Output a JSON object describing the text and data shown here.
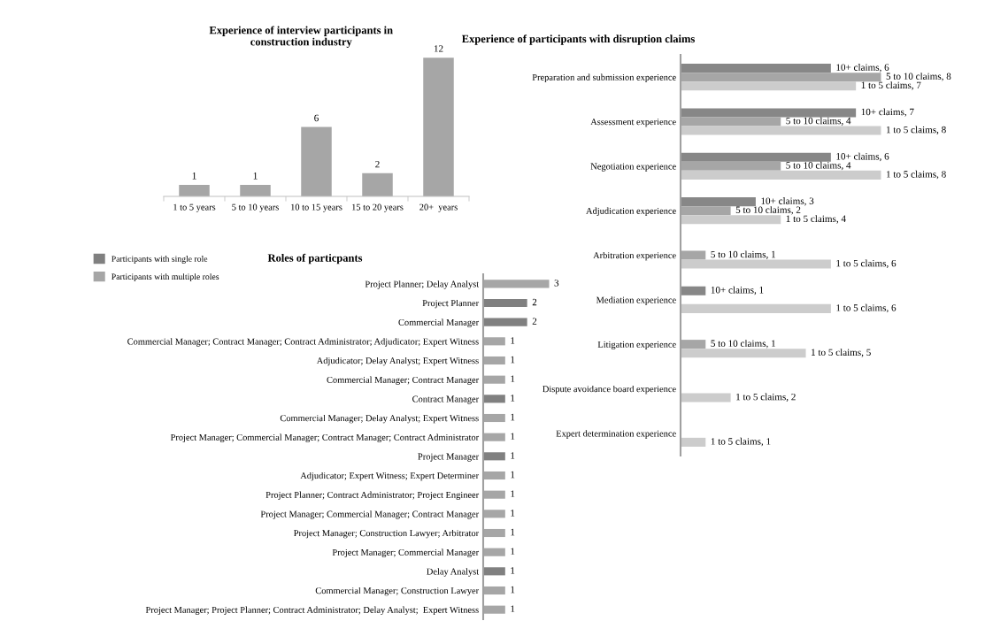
{
  "chart_data": [
    {
      "type": "bar",
      "title": "Experience of interview participants in\nconstruction industry",
      "categories": [
        "1 to 5 years",
        "5 to 10 years",
        "10 to 15 years",
        "15 to 20 years",
        "20+  years"
      ],
      "values": [
        1,
        1,
        6,
        2,
        12
      ],
      "color": "#a6a6a6",
      "data_labels": true,
      "tick_labels": "x",
      "grid": false,
      "legend": false
    },
    {
      "type": "bar",
      "orientation": "horizontal",
      "title": "Experience of participants with disruption claims",
      "categories": [
        "Preparation and submission experience",
        "Assessment experience",
        "Negotiation experience",
        "Adjudication experience",
        "Arbitration experience",
        "Mediation experience",
        "Litigation experience",
        "Dispute avoidance board experience",
        "Expert determination experience"
      ],
      "series": [
        {
          "color": "#878787",
          "values": [
            6,
            7,
            6,
            3,
            null,
            1,
            null,
            null,
            null
          ],
          "value_labels": [
            "10+ claims, 6",
            "10+ claims, 7",
            "10+ claims, 6",
            "10+ claims, 3",
            null,
            "10+ claims, 1",
            null,
            null,
            null
          ]
        },
        {
          "color": "#a6a6a6",
          "values": [
            8,
            4,
            4,
            2,
            1,
            null,
            1,
            null,
            null
          ],
          "value_labels": [
            "5 to 10 claims, 8",
            "5 to 10 claims, 4",
            "5 to 10 claims, 4",
            "5 to 10 claims, 2",
            "5 to 10 claims, 1",
            null,
            "5 to 10 claims, 1",
            null,
            null
          ]
        },
        {
          "color": "#cccccc",
          "values": [
            7,
            8,
            8,
            4,
            6,
            6,
            5,
            2,
            1
          ],
          "value_labels": [
            "1 to 5 claims, 7",
            "1 to 5 claims, 8",
            "1 to 5 claims, 8",
            "1 to 5 claims, 4",
            "1 to 5 claims, 6",
            "1 to 5 claims, 6",
            "1 to 5 claims, 5",
            "1 to 5 claims, 2",
            "1 to 5 claims, 1"
          ]
        }
      ],
      "tick_labels": "y",
      "grid": false,
      "legend": false
    },
    {
      "type": "bar",
      "orientation": "horizontal",
      "stacked": true,
      "title": "Roles of particpants",
      "categories": [
        "Project Planner; Delay Analyst",
        "Project Planner",
        "Commercial Manager",
        "Commercial Manager; Contract Manager; Contract Administrator; Adjudicator; Expert Witness",
        "Adjudicator; Delay Analyst; Expert Witness",
        "Commercial Manager; Contract Manager",
        "Contract Manager",
        "Commercial Manager; Delay Analyst; Expert Witness",
        "Project Manager; Commercial Manager; Contract Manager; Contract Administrator",
        "Project Manager",
        "Adjudicator; Expert Witness; Expert Determiner",
        "Project Planner; Contract Administrator; Project Engineer",
        "Project Manager; Commercial Manager; Contract Manager",
        "Project Manager; Construction Lawyer; Arbitrator",
        "Project Manager; Commercial Manager",
        "Delay Analyst",
        "Commercial Manager; Construction Lawyer",
        "Project Manager; Project Planner; Contract Administrator; Delay Analyst;  Expert Witness"
      ],
      "series": [
        {
          "name": "Participants with single role",
          "color": "#808080",
          "values": [
            null,
            2,
            2,
            null,
            null,
            null,
            1,
            null,
            null,
            1,
            null,
            null,
            null,
            null,
            null,
            1,
            null,
            null
          ]
        },
        {
          "name": "Participants with multiple roles",
          "color": "#a6a6a6",
          "values": [
            3,
            null,
            null,
            1,
            1,
            1,
            null,
            1,
            1,
            null,
            1,
            1,
            1,
            1,
            1,
            null,
            1,
            1
          ]
        }
      ],
      "data_labels": true,
      "tick_labels": "y",
      "grid": false,
      "legend": "top left"
    }
  ]
}
